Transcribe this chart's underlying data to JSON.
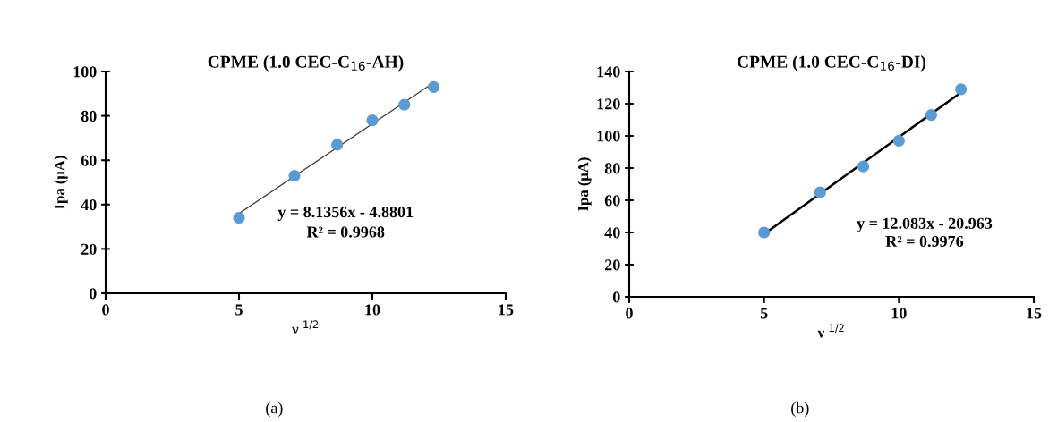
{
  "chart_data": [
    {
      "type": "scatter",
      "title": "CPME (1.0 CEC-C$_{16}$-AH)",
      "xlabel": "ν $^{1/2}$",
      "ylabel": "Ipa (μA)",
      "xlim": [
        0,
        15
      ],
      "xticks": [
        0,
        5,
        10,
        15
      ],
      "ylim": [
        0,
        100
      ],
      "yticks": [
        0,
        20,
        40,
        60,
        80,
        100
      ],
      "grid": false,
      "legend": false,
      "marker": "circle",
      "series": [
        {
          "color": "#5b9bd5",
          "x": [
            5,
            7.08,
            8.68,
            10,
            11.2,
            12.3
          ],
          "values": [
            34,
            53,
            67,
            78,
            85,
            93
          ]
        },
        {
          "type": "line",
          "color": "#404040",
          "line_style": "solid",
          "marker": "none",
          "x": [
            5,
            12.3
          ],
          "values": [
            36,
            95
          ]
        }
      ],
      "annotations": [
        "y = 8.1356x - 4.8801",
        "R² = 0.9968",
        "(a)"
      ]
    },
    {
      "type": "scatter",
      "title": "CPME (1.0 CEC-C$_{16}$-DI)",
      "xlabel": "ν $^{1/2}$",
      "ylabel": "Ipa (μA)",
      "xlim": [
        0,
        15
      ],
      "xticks": [
        0,
        5,
        10,
        15
      ],
      "ylim": [
        0,
        140
      ],
      "yticks": [
        0,
        20,
        40,
        60,
        80,
        100,
        120,
        140
      ],
      "grid": false,
      "legend": false,
      "marker": "circle",
      "series": [
        {
          "color": "#5b9bd5",
          "x": [
            5,
            7.08,
            8.68,
            10,
            11.2,
            12.3
          ],
          "values": [
            40,
            65,
            81,
            97,
            113,
            129
          ]
        },
        {
          "type": "line",
          "color": "#000000",
          "line_style": "solid",
          "marker": "none",
          "x": [
            5,
            12.3
          ],
          "values": [
            39,
            127
          ]
        }
      ],
      "annotations": [
        "y = 12.083x - 20.963",
        "R² = 0.9976",
        "(b)"
      ]
    }
  ]
}
